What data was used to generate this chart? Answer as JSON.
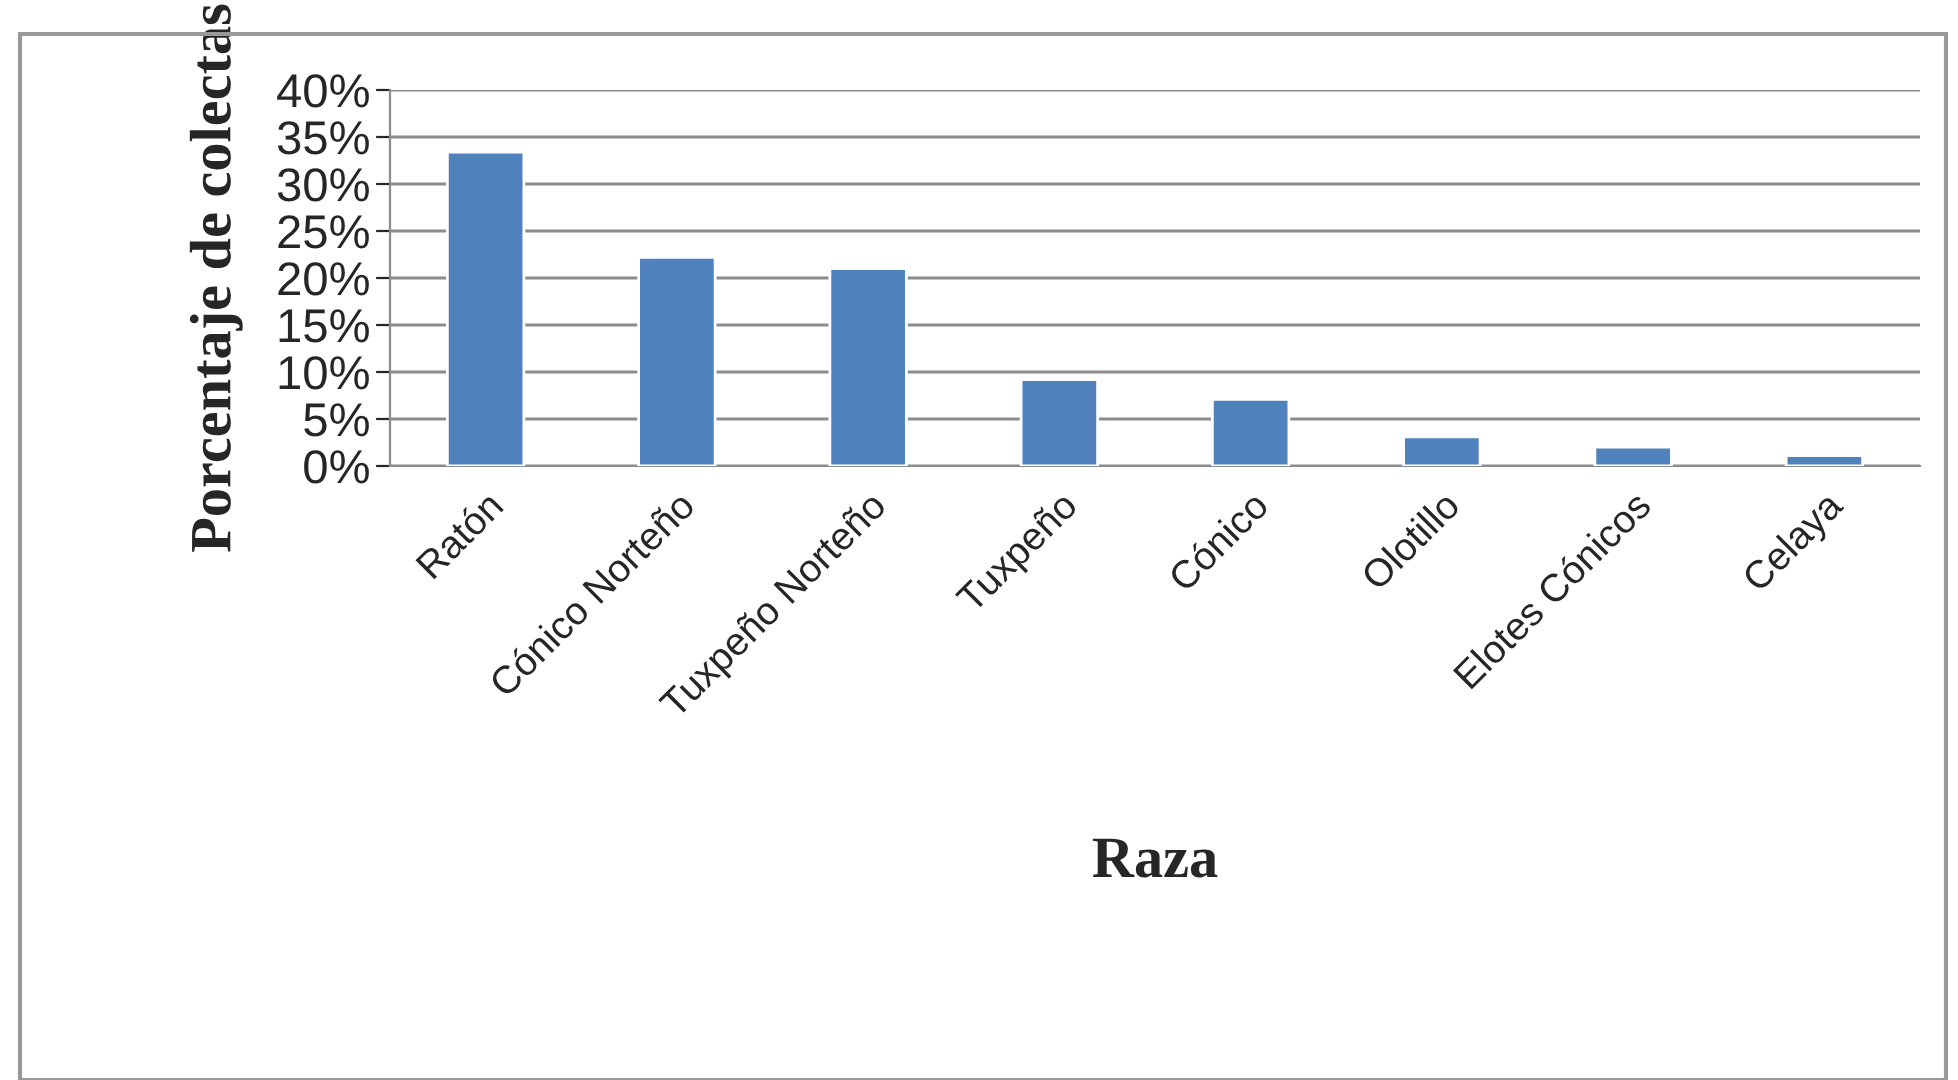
{
  "chart_data": {
    "type": "bar",
    "xlabel": "Raza",
    "ylabel": "Porcentaje de colectas",
    "categories": [
      "Ratón",
      "Cónico Norteño",
      "Tuxpeño Norteño",
      "Tuxpeño",
      "Cónico",
      "Olotillo",
      "Elotes Cónicos",
      "Celaya"
    ],
    "values": [
      33.4,
      22.2,
      21.0,
      9.2,
      7.1,
      3.1,
      2.0,
      1.1
    ],
    "color": "#4f81bd",
    "ylim": [
      0,
      40
    ],
    "yticks": [
      {
        "value": 0,
        "label": "0%"
      },
      {
        "value": 5,
        "label": "5%"
      },
      {
        "value": 10,
        "label": "10%"
      },
      {
        "value": 15,
        "label": "15%"
      },
      {
        "value": 20,
        "label": "20%"
      },
      {
        "value": 25,
        "label": "25%"
      },
      {
        "value": 30,
        "label": "30%"
      },
      {
        "value": 35,
        "label": "35%"
      },
      {
        "value": 40,
        "label": "40%"
      }
    ],
    "grid": "y"
  }
}
